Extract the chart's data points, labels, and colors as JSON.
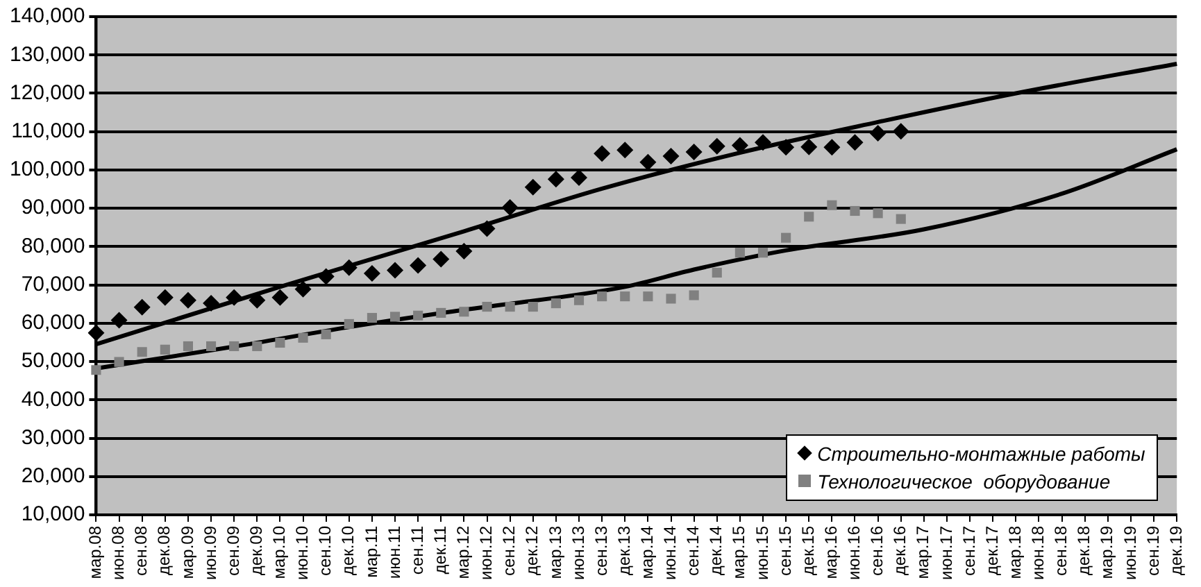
{
  "chart_data": {
    "type": "scatter",
    "categories": [
      "мар.08",
      "июн.08",
      "сен.08",
      "дек.08",
      "мар.09",
      "июн.09",
      "сен.09",
      "дек.09",
      "мар.10",
      "июн.10",
      "сен.10",
      "дек.10",
      "мар.11",
      "июн.11",
      "сен.11",
      "дек.11",
      "мар.12",
      "июн.12",
      "сен.12",
      "дек.12",
      "мар.13",
      "июн.13",
      "сен.13",
      "дек.13",
      "мар.14",
      "июн.14",
      "сен.14",
      "дек.14",
      "мар.15",
      "июн.15",
      "сен.15",
      "дек.15",
      "мар.16",
      "июн.16",
      "сен.16",
      "дек.16",
      "мар.17",
      "июн.17",
      "сен.17",
      "дек.17",
      "мар.18",
      "июн.18",
      "сен.18",
      "дек.18",
      "мар.19",
      "июн.19",
      "сен.19",
      "дек.19"
    ],
    "series": [
      {
        "name": "Строительно-монтажные работы",
        "color": "#000000",
        "marker": "diamond",
        "values": [
          57500,
          60800,
          64200,
          66700,
          66000,
          65200,
          66700,
          66000,
          66700,
          68900,
          72200,
          74500,
          73000,
          73800,
          75100,
          76700,
          78800,
          84700,
          90200,
          95500,
          97600,
          98000,
          104300,
          105200,
          102000,
          103600,
          104700,
          106200,
          106400,
          107200,
          105900,
          106000,
          105900,
          107200,
          109600,
          110100,
          null,
          null,
          null,
          null,
          null,
          null,
          null,
          null,
          null,
          null,
          null,
          null
        ]
      },
      {
        "name": "Технологическое  оборудование",
        "color": "#808080",
        "marker": "square",
        "values": [
          47800,
          49900,
          52500,
          53100,
          54000,
          54000,
          54000,
          54000,
          54900,
          56200,
          57100,
          59800,
          61400,
          61700,
          62000,
          62700,
          63000,
          64300,
          64300,
          64300,
          65200,
          66000,
          67000,
          67000,
          67000,
          66400,
          67300,
          73200,
          78400,
          78400,
          82300,
          87800,
          90800,
          89300,
          88700,
          87200,
          null,
          null,
          null,
          null,
          null,
          null,
          null,
          null,
          null,
          null,
          null,
          null
        ]
      },
      {
        "type": "line",
        "color": "#000000",
        "marker": "none",
        "x": [
          "мар.08",
          "мар.10",
          "мар.12",
          "сен.13",
          "мар.15",
          "сен.16",
          "мар.18",
          "дек.19"
        ],
        "values": [
          54500,
          69500,
          84000,
          95100,
          104500,
          112500,
          120000,
          127700
        ]
      },
      {
        "type": "line",
        "color": "#000000",
        "marker": "none",
        "x": [
          "мар.08",
          "сен.09",
          "дек.10",
          "мар.12",
          "дек.13",
          "сен.14",
          "сен.15",
          "мар.17",
          "сен.18",
          "дек.19"
        ],
        "values": [
          48200,
          53900,
          59000,
          63500,
          69500,
          74000,
          79000,
          84500,
          93800,
          105400
        ]
      }
    ],
    "ylim": [
      10000,
      140000
    ],
    "yticks": [
      {
        "value": 10000,
        "label": "10,000"
      },
      {
        "value": 20000,
        "label": "20,000"
      },
      {
        "value": 30000,
        "label": "30,000"
      },
      {
        "value": 40000,
        "label": "40,000"
      },
      {
        "value": 50000,
        "label": "50,000"
      },
      {
        "value": 60000,
        "label": "60,000"
      },
      {
        "value": 70000,
        "label": "70,000"
      },
      {
        "value": 80000,
        "label": "80,000"
      },
      {
        "value": 90000,
        "label": "90,000"
      },
      {
        "value": 100000,
        "label": "100,000"
      },
      {
        "value": 110000,
        "label": "110,000"
      },
      {
        "value": 120000,
        "label": "120,000"
      },
      {
        "value": 130000,
        "label": "130,000"
      },
      {
        "value": 140000,
        "label": "140,000"
      }
    ],
    "grid": "y",
    "legend": "bottom right"
  }
}
